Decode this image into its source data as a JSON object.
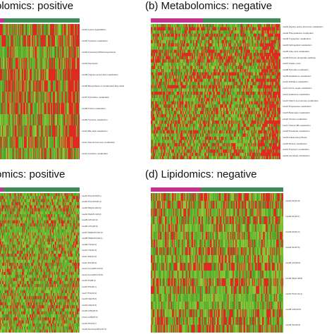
{
  "chart_data": [
    {
      "type": "heatmap",
      "panel": "a",
      "title": "olomics: positive",
      "group_bar_colors": [
        "#c2338f",
        "#3d8c55"
      ],
      "group_split_fraction": 0.05,
      "rows": 12,
      "columns": 110,
      "row_labels": [
        "row01 Lysine degradation",
        "row02 Cysteine metabolism",
        "row03 Aminoacyl-tRNA biosynthesis",
        "row04 Glycolysis",
        "row05 Arginine and proline metabolism",
        "row06 Biosynthesis of unsaturated fatty acids",
        "row07 Pyrimidine metabolism",
        "row08 Purine metabolism",
        "row09 Tyrosine metabolism",
        "row10 Bile acid metabolism",
        "row11 Steroid hormone metabolism",
        "row12 Carnitine metabolism"
      ],
      "palette": {
        "high": "#e8251f",
        "mid": "#7ab832",
        "low": "#3fa12b"
      },
      "red_fraction": 0.35,
      "right_hotspot": true
    },
    {
      "type": "heatmap",
      "panel": "b",
      "title": "(b)  Metabolomics: negative",
      "group_bar_colors": [
        "#c2338f",
        "#3d8c55"
      ],
      "group_split_fraction": 0.4,
      "rows": 42,
      "columns": 150,
      "row_labels": [
        "row01 Glycine serine threonine metabolism",
        "row02 Phenylalanine metabolism",
        "row03 Tryptophan metabolism",
        "row04 Sphingolipid metabolism",
        "row05 Fatty acid metabolism",
        "row06 Pentose phosphate pathway",
        "row07 Citrate cycle",
        "row08 Pyruvate metabolism",
        "row09 Glutathione metabolism",
        "row10 Histidine metabolism",
        "row11 Amino sugar metabolism",
        "row12 Galactose metabolism",
        "row13 Starch and sucrose metabolism",
        "row14 Propanoate metabolism",
        "row15 Butanoate metabolism",
        "row16 Taurine metabolism",
        "row17 Vitamin B6 metabolism",
        "row18 Nicotinate metabolism",
        "row19 Folate biosynthesis",
        "row20 Retinol metabolism",
        "row21 Porphyrin metabolism",
        "row22 Ascorbate metabolism"
      ],
      "palette": {
        "high": "#e8251f",
        "mid": "#7ab832",
        "low": "#3fa12b"
      },
      "red_fraction": 0.35,
      "right_hotspot": true
    },
    {
      "type": "heatmap",
      "panel": "c",
      "title": "omics: positive",
      "group_bar_colors": [
        "#c2338f",
        "#3d8c55"
      ],
      "group_split_fraction": 0.04,
      "rows": 46,
      "columns": 110,
      "row_labels": [
        "row01 PC(16:0/18:1)",
        "row02 PC(18:0/20:4)",
        "row03 PE(16:0/22:6)",
        "row04 PE(18:1/18:2)",
        "row05 LPC(16:0)",
        "row06 LPC(18:0)",
        "row07 SM(d18:1/16:0)",
        "row08 SM(d18:1/24:1)",
        "row09 TG(52:2)",
        "row10 TG(54:3)",
        "row11 DG(34:1)",
        "row12 DG(36:2)",
        "row13 Cer(d18:1/24:0)",
        "row14 Cer(d18:1/16:0)",
        "row15 PI(38:4)",
        "row16 PS(36:1)",
        "row17 PG(34:1)",
        "row18 CE(18:2)",
        "row19 CE(20:4)",
        "row20 LPE(18:0)",
        "row21 LPE(20:4)",
        "row22 PA(34:1)",
        "row23 HexCer(d18:1/24:1)"
      ],
      "palette": {
        "high": "#e8251f",
        "mid": "#7ab832",
        "low": "#3fa12b"
      },
      "red_fraction": 0.3,
      "right_hotspot": false
    },
    {
      "type": "heatmap",
      "panel": "d",
      "title": "(d)  Lipidomics: negative",
      "group_bar_colors": [
        "#c2338f",
        "#3d8c55"
      ],
      "group_split_fraction": 0.38,
      "rows": 18,
      "columns": 150,
      "row_labels": [
        "row01 FA(16:0)",
        "row02 FA(18:1)",
        "row03 FA(20:4)",
        "row04 FA(22:6)",
        "row05 LPI(18:0)",
        "row06 PE(O-38:5)",
        "row07 PC(O-34:1)",
        "row08 LPA(16:0)",
        "row09 PG(36:2)"
      ],
      "palette": {
        "high": "#e8251f",
        "mid": "#7ab832",
        "low": "#3fa12b"
      },
      "red_fraction": 0.3,
      "right_hotspot": false
    }
  ]
}
